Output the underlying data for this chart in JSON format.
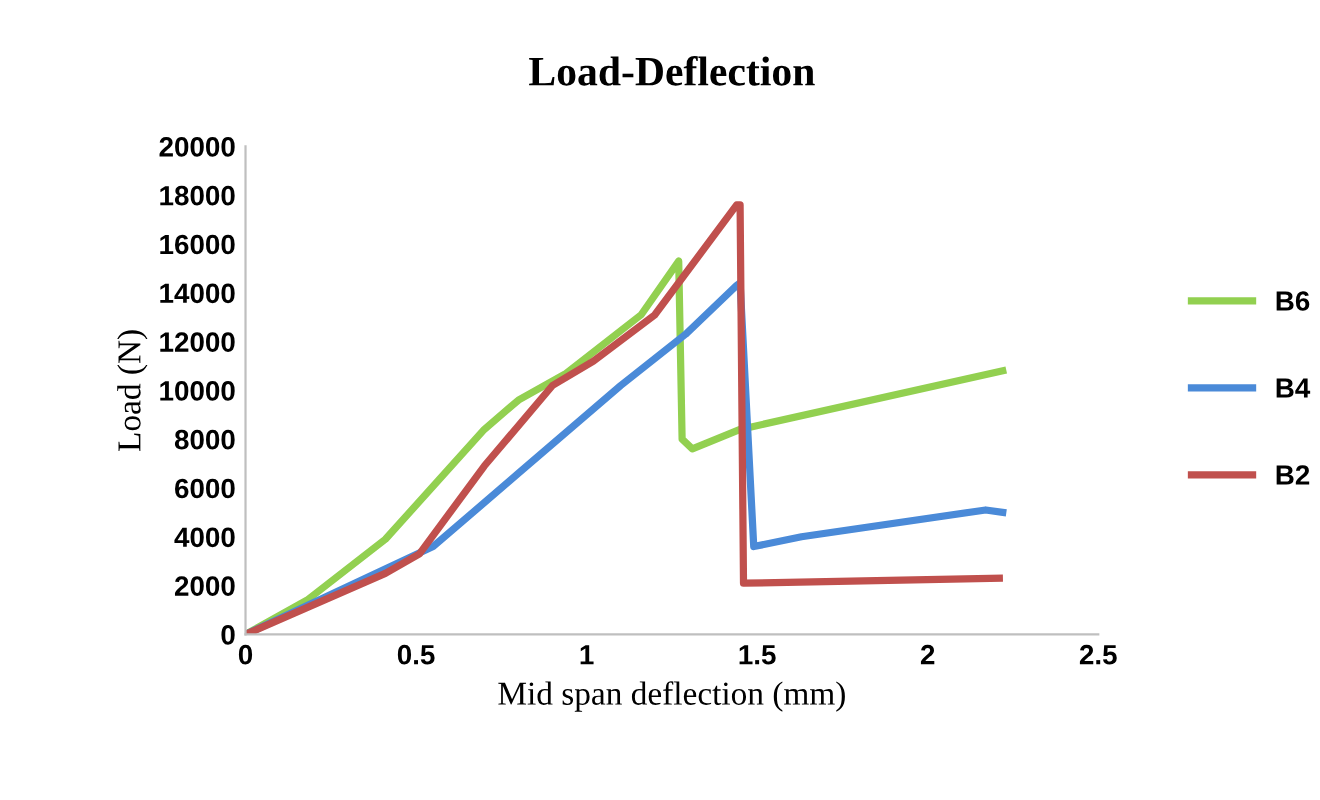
{
  "chart_data": {
    "type": "line",
    "title": "Load-Deflection",
    "xlabel": "Mid span deflection (mm)",
    "ylabel": "Load (N)",
    "xlim": [
      0,
      2.5
    ],
    "xticks": [
      0,
      0.5,
      1,
      1.5,
      2,
      2.5
    ],
    "ylim": [
      0,
      20000
    ],
    "yticks": [
      0,
      2000,
      4000,
      6000,
      8000,
      10000,
      12000,
      14000,
      16000,
      18000,
      20000
    ],
    "grid": false,
    "legend": "right",
    "marker": "none",
    "line_style": "solid",
    "series": [
      {
        "name": "B6",
        "color": "#92d050",
        "x": [
          0,
          0.18,
          0.41,
          0.7,
          0.8,
          0.94,
          1.16,
          1.27,
          1.28,
          1.31,
          1.45,
          2.22
        ],
        "values": [
          0,
          1400,
          3900,
          8400,
          9600,
          10700,
          13100,
          15300,
          8000,
          7600,
          8400,
          10800
        ]
      },
      {
        "name": "B4",
        "color": "#4a8ad8",
        "x": [
          0,
          0.55,
          0.8,
          1.1,
          1.29,
          1.44,
          1.45,
          1.49,
          1.63,
          2.17,
          2.22
        ],
        "values": [
          0,
          3600,
          6600,
          10200,
          12300,
          14300,
          14400,
          3600,
          4000,
          5100,
          5000
        ]
      },
      {
        "name": "B2",
        "color": "#c0504d",
        "x": [
          0,
          0.41,
          0.51,
          0.7,
          0.9,
          1.02,
          1.2,
          1.44,
          1.45,
          1.46,
          2.21
        ],
        "values": [
          0,
          2500,
          3300,
          6900,
          10200,
          11200,
          13100,
          17600,
          17600,
          2100,
          2300
        ]
      }
    ]
  }
}
